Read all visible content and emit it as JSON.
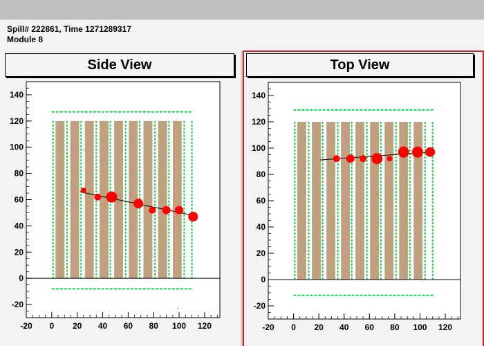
{
  "window": {
    "bg": "#c0c0c0"
  },
  "header": {
    "line1": "Spill# 222861, Time 1271289317",
    "line2": "Module 8"
  },
  "colors": {
    "panel_bg": "#f3f3f3",
    "absorber": "#bfa07f",
    "strip": "#00dd44",
    "hit": "#ff0000",
    "track": "#000000",
    "active_border": "#d22020"
  },
  "views": [
    {
      "title": "Side View",
      "detector_top": 127,
      "detector_bottom": -8,
      "hits": [
        {
          "x": 25,
          "y": 67,
          "r": 4
        },
        {
          "x": 36,
          "y": 62,
          "r": 5
        },
        {
          "x": 47,
          "y": 62,
          "r": 8
        },
        {
          "x": 68,
          "y": 57,
          "r": 7
        },
        {
          "x": 79,
          "y": 52,
          "r": 5
        },
        {
          "x": 90,
          "y": 52,
          "r": 6
        },
        {
          "x": 100,
          "y": 52,
          "r": 6
        },
        {
          "x": 111,
          "y": 47,
          "r": 7
        }
      ],
      "track": [
        [
          22,
          66
        ],
        [
          111,
          48
        ]
      ],
      "noise": [
        {
          "x": 25,
          "y": 98
        },
        {
          "x": 99,
          "y": -23
        }
      ]
    },
    {
      "title": "Top View",
      "detector_top": 129,
      "detector_bottom": -12,
      "hits": [
        {
          "x": 22,
          "y": 91,
          "r": 1
        },
        {
          "x": 34,
          "y": 92,
          "r": 5
        },
        {
          "x": 45,
          "y": 92,
          "r": 6
        },
        {
          "x": 55,
          "y": 92,
          "r": 5
        },
        {
          "x": 66,
          "y": 92,
          "r": 8
        },
        {
          "x": 76,
          "y": 92,
          "r": 4
        },
        {
          "x": 87,
          "y": 97,
          "r": 8
        },
        {
          "x": 98,
          "y": 97,
          "r": 8
        },
        {
          "x": 108,
          "y": 97,
          "r": 7
        }
      ],
      "track": [
        [
          21,
          91
        ],
        [
          108,
          97
        ]
      ],
      "noise": []
    }
  ],
  "chart_data": [
    {
      "type": "scatter",
      "title": "Side View",
      "xlim": [
        -20,
        132
      ],
      "ylim": [
        -30,
        150
      ],
      "xticks": [
        "-20",
        "0",
        "20",
        "40",
        "60",
        "80",
        "100",
        "120"
      ],
      "yticks": [
        "-20",
        "0",
        "20",
        "40",
        "60",
        "80",
        "100",
        "120",
        "140"
      ],
      "x": [
        25,
        36,
        47,
        68,
        79,
        90,
        100,
        111
      ],
      "y": [
        67,
        62,
        62,
        57,
        52,
        52,
        52,
        47
      ]
    },
    {
      "type": "scatter",
      "title": "Top View",
      "xlim": [
        -20,
        132
      ],
      "ylim": [
        -30,
        150
      ],
      "xticks": [
        "-20",
        "0",
        "20",
        "40",
        "60",
        "80",
        "100",
        "120"
      ],
      "yticks": [
        "-20",
        "0",
        "20",
        "40",
        "60",
        "80",
        "100",
        "120",
        "140"
      ],
      "x": [
        22,
        34,
        45,
        55,
        66,
        76,
        87,
        98,
        108
      ],
      "y": [
        91,
        92,
        92,
        92,
        92,
        92,
        97,
        97,
        97
      ]
    }
  ]
}
